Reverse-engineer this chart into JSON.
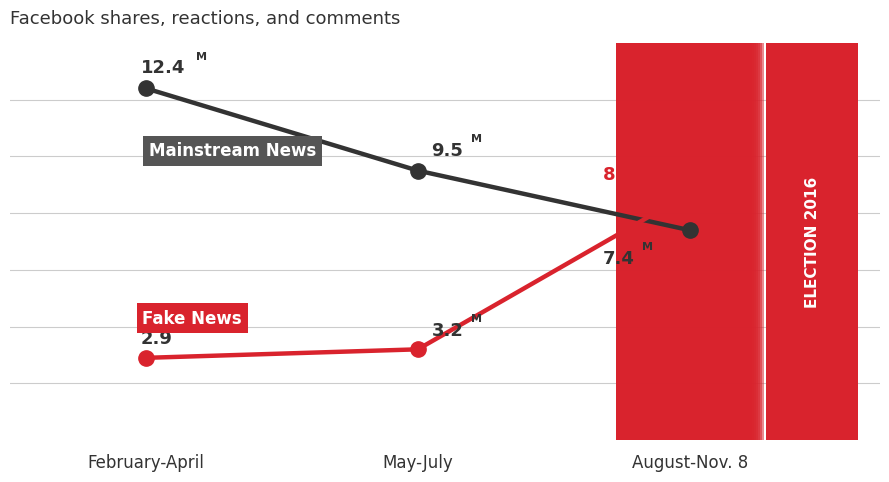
{
  "title": "Facebook shares, reactions, and comments",
  "title_fontsize": 13,
  "x_labels": [
    "February-April",
    "May-July",
    "August-Nov. 8"
  ],
  "x_positions": [
    0,
    1,
    2
  ],
  "mainstream_values": [
    12.4,
    9.5,
    7.4
  ],
  "fake_values": [
    2.9,
    3.2,
    8.7
  ],
  "mainstream_color": "#333333",
  "fake_color": "#d9232d",
  "background_color": "#ffffff",
  "mainstream_label_text": "Mainstream News",
  "fake_label_text": "Fake News",
  "election_text": "ELECTION 2016",
  "election_bar_color": "#d9232d",
  "ylim": [
    0,
    14
  ],
  "xlim": [
    -0.5,
    2.7
  ],
  "line_width": 3.2,
  "marker_size": 11,
  "mainstream_label_box_color": "#555555",
  "grid_color": "#cccccc"
}
